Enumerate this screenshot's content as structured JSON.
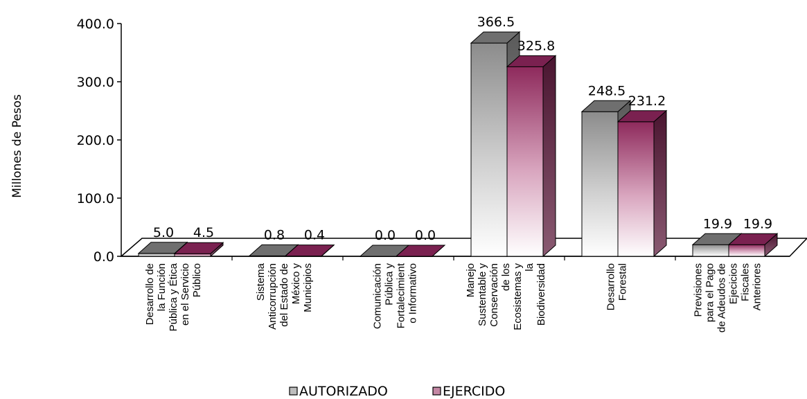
{
  "chart_data": {
    "type": "bar",
    "title": "",
    "xlabel": "",
    "ylabel": "Millones de Pesos",
    "ylim": [
      0,
      400
    ],
    "yticks": [
      "0.0",
      "100.0",
      "200.0",
      "300.0",
      "400.0"
    ],
    "categories": [
      [
        "Desarrollo de",
        "la Función",
        "Pública y Ética",
        "en el Servicio",
        "Público"
      ],
      [
        "Sistema",
        "Anticorrupción",
        "del Estado de",
        "México y",
        "Municipios"
      ],
      [
        "Comunicación",
        "Pública y",
        "Fortalecimient",
        "o Informativo"
      ],
      [
        "Manejo",
        "Sustentable y",
        "Conservación",
        "de los",
        "Ecosistemas y",
        "la",
        "Biodiversidad"
      ],
      [
        "Desarrollo",
        "Forestal"
      ],
      [
        "Previsiones",
        "para el Pago",
        "de Adeudos de",
        "Ejecicios",
        "Fiscales",
        "Anteriores"
      ]
    ],
    "series": [
      {
        "name": "AUTORIZADO",
        "values": [
          5.0,
          0.8,
          0.0,
          366.5,
          248.5,
          19.9
        ],
        "labels": [
          "5.0",
          "0.8",
          "0.0",
          "366.5",
          "248.5",
          "19.9"
        ],
        "color": "#9a9a9a"
      },
      {
        "name": "EJERCIDO",
        "values": [
          4.5,
          0.4,
          0.0,
          325.8,
          231.2,
          19.9
        ],
        "labels": [
          "4.5",
          "0.4",
          "0.0",
          "325.8",
          "231.2",
          "19.9"
        ],
        "color": "#8e2a5c"
      }
    ],
    "legend": "bottom",
    "grid": false,
    "style": "3d-column"
  }
}
